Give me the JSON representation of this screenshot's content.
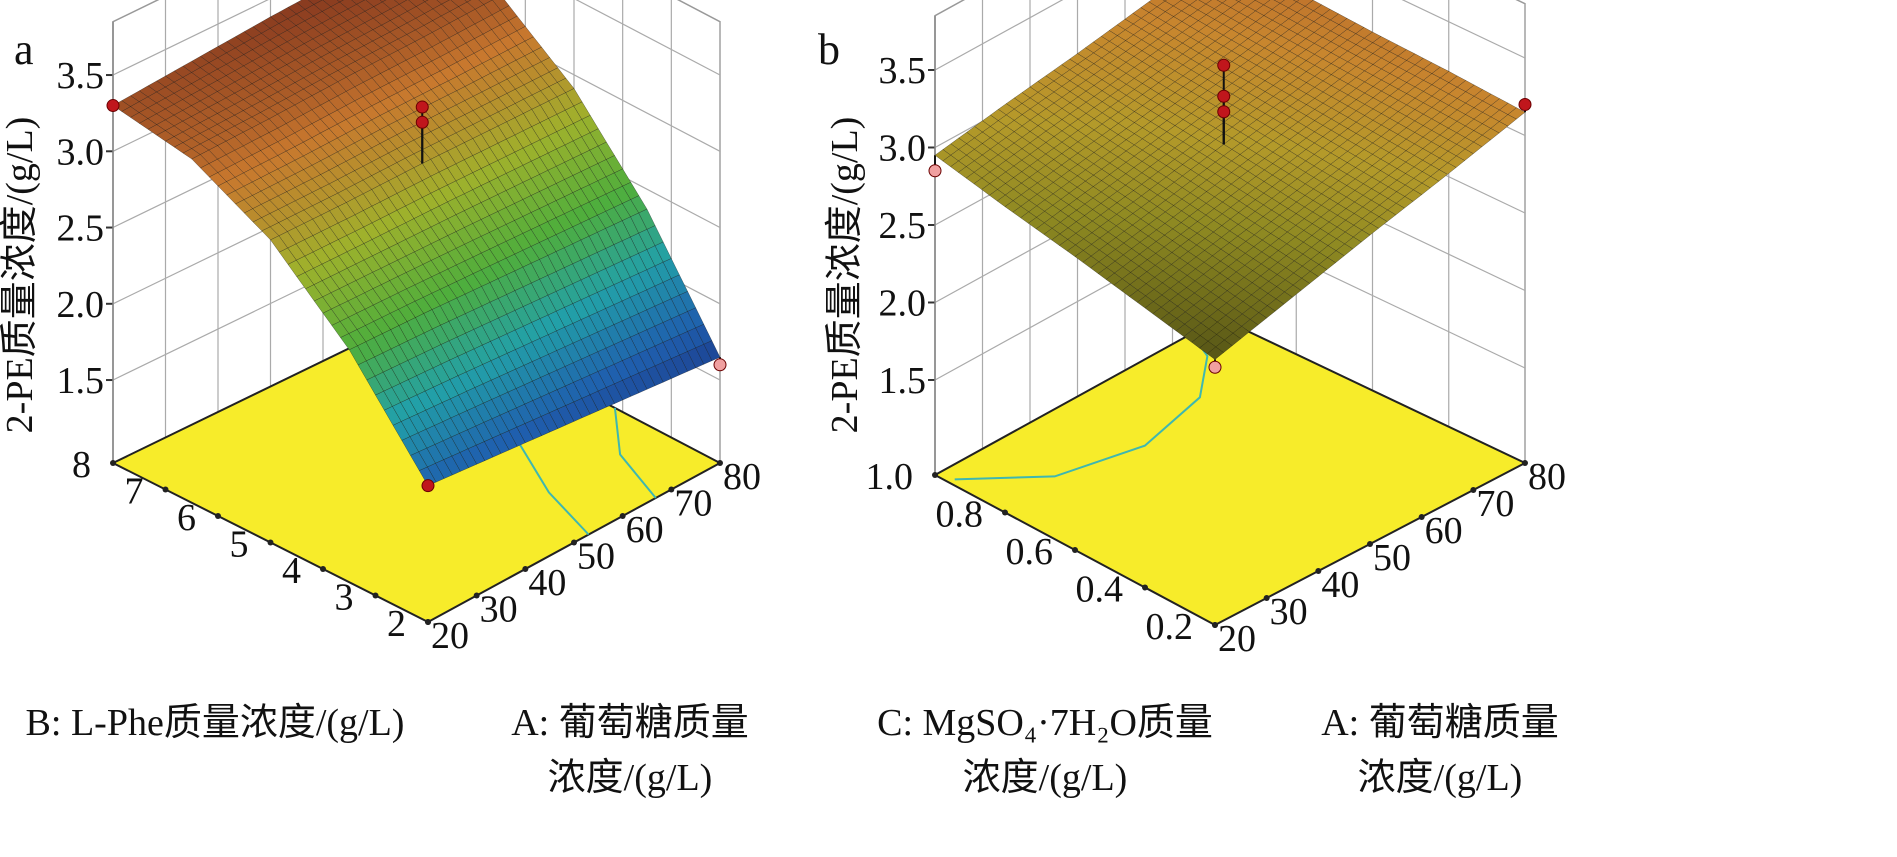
{
  "panels": [
    "a",
    "b"
  ],
  "chart_data": [
    {
      "type": "surface",
      "panel": "a",
      "zlabel": "2-PE质量浓度/(g/L)",
      "xlabel_line1": "A: 葡萄糖质量",
      "xlabel_line2": "浓度/(g/L)",
      "ylabel": "B: L-Phe质量浓度/(g/L)",
      "x_ticks": [
        "20",
        "30",
        "40",
        "50",
        "60",
        "70",
        "80"
      ],
      "y_ticks": [
        "2",
        "3",
        "4",
        "5",
        "6",
        "7",
        "8"
      ],
      "z_ticks": [
        "1.5",
        "2.0",
        "2.5",
        "3.0",
        "3.5"
      ],
      "xlim": [
        20,
        80
      ],
      "ylim": [
        2,
        8
      ],
      "zlim": [
        1.5,
        3.5
      ],
      "grid_x": [
        20,
        35,
        50,
        65,
        80
      ],
      "grid_y": [
        2,
        3.5,
        5,
        6.5,
        8
      ],
      "z": [
        [
          1.85,
          1.8,
          1.75,
          1.7,
          1.65
        ],
        [
          2.48,
          2.46,
          2.43,
          2.4,
          2.37
        ],
        [
          2.94,
          2.93,
          2.93,
          2.92,
          2.91
        ],
        [
          3.21,
          3.22,
          3.24,
          3.25,
          3.27
        ],
        [
          3.3,
          3.34,
          3.38,
          3.41,
          3.45
        ]
      ],
      "design_points": [
        {
          "x": 20,
          "y": 8,
          "z": 3.3,
          "above": true
        },
        {
          "x": 50,
          "y": 5,
          "z": 3.3,
          "above": true
        },
        {
          "x": 50,
          "y": 5,
          "z": 3.2,
          "above": true
        },
        {
          "x": 20,
          "y": 2,
          "z": 1.85,
          "above": true
        },
        {
          "x": 80,
          "y": 2,
          "z": 1.6,
          "above": false
        }
      ],
      "colormap": [
        "#1b2a7a",
        "#1f5fae",
        "#22a0a8",
        "#4fae3c",
        "#9fb12c",
        "#c8782e",
        "#7a2c1c"
      ],
      "floor_color": "#f7ec2a",
      "contour_color": "#3fb7b0"
    },
    {
      "type": "surface",
      "panel": "b",
      "zlabel": "2-PE质量浓度/(g/L)",
      "xlabel_line1": "A: 葡萄糖质量",
      "xlabel_line2": "浓度/(g/L)",
      "ylabel_line1": "C: MgSO₄·7H₂O质量",
      "ylabel_line2": "浓度/(g/L)",
      "x_ticks": [
        "20",
        "30",
        "40",
        "50",
        "60",
        "70",
        "80"
      ],
      "y_ticks": [
        "0.2",
        "0.4",
        "0.6",
        "0.8",
        "1.0"
      ],
      "z_ticks": [
        "1.5",
        "2.0",
        "2.5",
        "3.0",
        "3.5"
      ],
      "xlim": [
        20,
        80
      ],
      "ylim": [
        0.2,
        1.0
      ],
      "zlim": [
        1.5,
        3.5
      ],
      "grid_x": [
        20,
        35,
        50,
        65,
        80
      ],
      "grid_y": [
        0.2,
        0.4,
        0.6,
        0.8,
        1.0
      ],
      "z": [
        [
          2.6,
          2.74,
          2.88,
          3.01,
          3.15
        ],
        [
          2.69,
          2.81,
          2.93,
          3.05,
          3.18
        ],
        [
          2.78,
          2.88,
          2.99,
          3.09,
          3.2
        ],
        [
          2.86,
          2.95,
          3.04,
          3.13,
          3.23
        ],
        [
          2.95,
          3.03,
          3.1,
          3.18,
          3.25
        ]
      ],
      "design_points": [
        {
          "x": 20,
          "y": 1.0,
          "z": 2.85,
          "above": false
        },
        {
          "x": 80,
          "y": 0.2,
          "z": 3.2,
          "above": true
        },
        {
          "x": 20,
          "y": 0.2,
          "z": 2.55,
          "above": false
        },
        {
          "x": 50,
          "y": 0.6,
          "z": 3.5,
          "above": true
        },
        {
          "x": 50,
          "y": 0.6,
          "z": 3.3,
          "above": true
        },
        {
          "x": 50,
          "y": 0.6,
          "z": 3.2,
          "above": true
        }
      ],
      "colormap": [
        "#2a2a10",
        "#4a4a14",
        "#6d6a1a",
        "#8f8a22",
        "#b49a2a",
        "#c8862e",
        "#b8642a"
      ],
      "floor_color": "#f7ec2a",
      "contour_color": "#3fb7b0"
    }
  ]
}
